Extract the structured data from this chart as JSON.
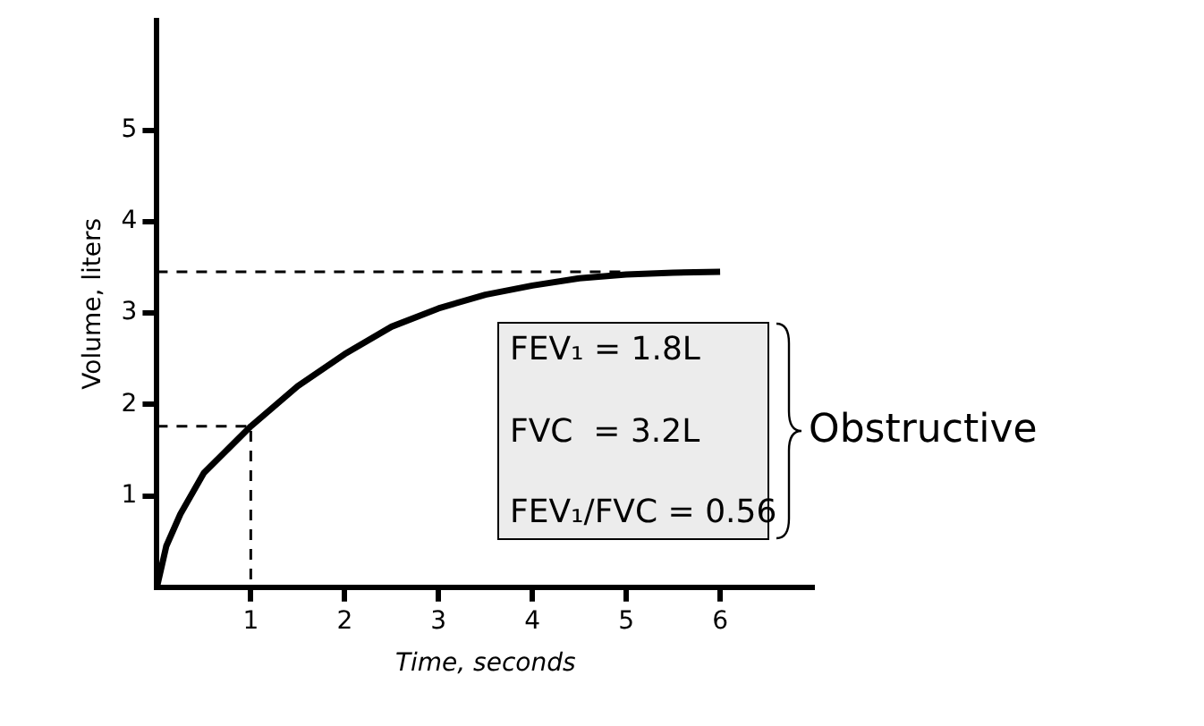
{
  "chart_data": {
    "type": "line",
    "xlabel": "Time, seconds",
    "ylabel": "Volume, liters",
    "xlim": [
      0,
      7
    ],
    "ylim": [
      0,
      6.2
    ],
    "xticks": [
      1,
      2,
      3,
      4,
      5,
      6
    ],
    "yticks": [
      1,
      2,
      3,
      4,
      5
    ],
    "grid": false,
    "legend": false,
    "marker": "none",
    "series": [
      {
        "color": "#000000",
        "x": [
          0,
          0.1,
          0.25,
          0.5,
          1,
          1.5,
          2,
          2.5,
          3,
          3.5,
          4,
          4.5,
          5,
          5.5,
          6
        ],
        "values": [
          0,
          0.45,
          0.8,
          1.25,
          1.76,
          2.2,
          2.55,
          2.85,
          3.05,
          3.2,
          3.3,
          3.38,
          3.42,
          3.44,
          3.45
        ]
      },
      {
        "color": "#000000",
        "line_style": "dashed",
        "x": [
          0,
          5
        ],
        "values": [
          3.45,
          3.45
        ]
      },
      {
        "color": "#000000",
        "line_style": "dashed",
        "x": [
          0,
          1,
          1
        ],
        "values": [
          1.76,
          1.76,
          0
        ]
      }
    ],
    "annotations": [
      "FEV₁ = 1.8L",
      "FVC  = 3.2L",
      "FEV₁/FVC = 0.56",
      "Obstructive"
    ]
  }
}
